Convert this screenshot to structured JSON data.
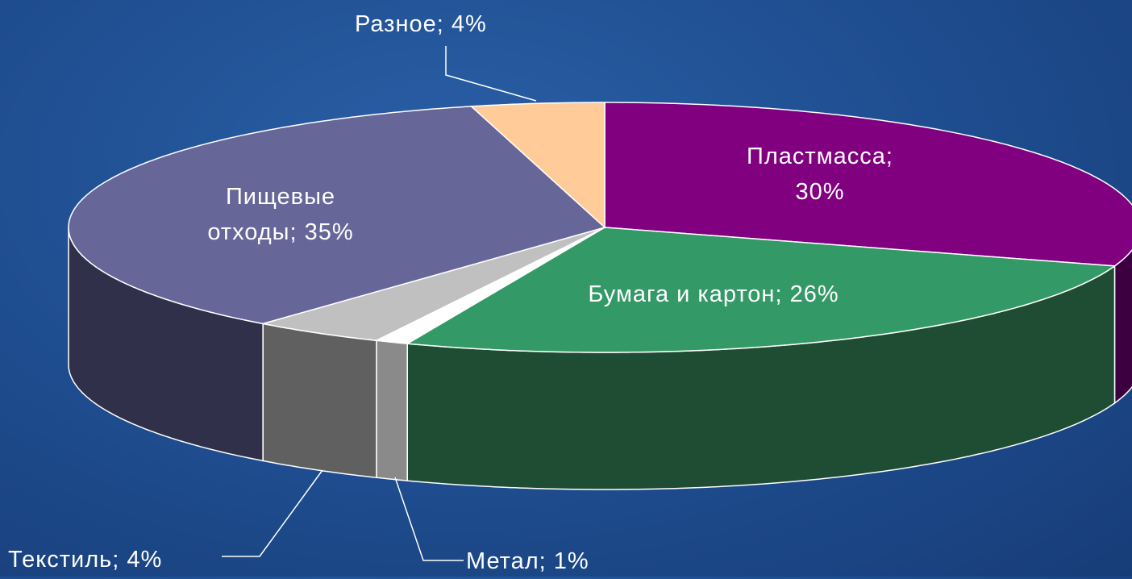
{
  "chart_data": {
    "type": "pie",
    "labels": [
      "Пластмасса; 30%",
      "Бумага и картон; 26%",
      "Метал; 1%",
      "Текстиль; 4%",
      "Пищевые отходы; 35%",
      "Разное; 4%"
    ],
    "values": [
      30,
      26,
      1,
      4,
      35,
      4
    ],
    "colors": [
      "#800080",
      "#339966",
      "#ffffff",
      "#c0c0c0",
      "#666699",
      "#ffcc99"
    ],
    "side_colors": [
      "#3c0040",
      "#1e4d33",
      "#8a8a8a",
      "#606060",
      "#30304a",
      "#c09060"
    ]
  }
}
